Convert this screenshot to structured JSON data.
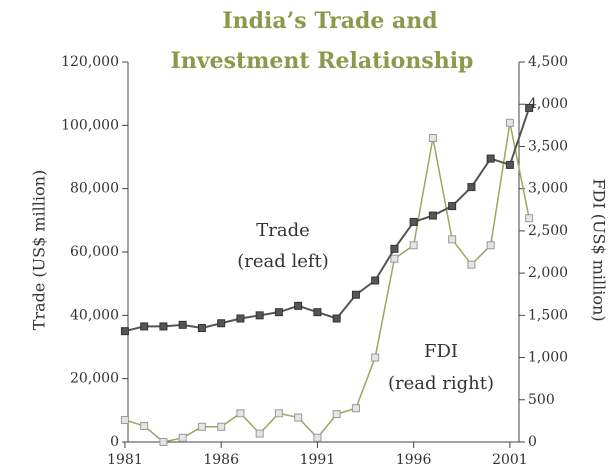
{
  "chart_data": {
    "type": "line",
    "title": [
      "India’s Trade and",
      "Investment Relationship"
    ],
    "y_label": "Trade (US$ million)",
    "y2_label": "FDI (US$ million)",
    "annotations": [
      [
        "Trade",
        "(read left)"
      ],
      [
        "FDI",
        "(read right)"
      ]
    ],
    "x": [
      1981,
      1982,
      1983,
      1984,
      1985,
      1986,
      1987,
      1988,
      1989,
      1990,
      1991,
      1992,
      1993,
      1994,
      1995,
      1996,
      1997,
      1998,
      1999,
      2000,
      2001,
      2002
    ],
    "xlim": [
      1980.9,
      2002.2
    ],
    "xticks": [
      1981,
      1986,
      1991,
      1996,
      2001
    ],
    "ylim": [
      0,
      120000
    ],
    "yticks": [
      0,
      {
        "value": 20000,
        "label": "20,000"
      },
      {
        "value": 40000,
        "label": "40,000"
      },
      {
        "value": 60000,
        "label": "60,000"
      },
      {
        "value": 80000,
        "label": "80,000"
      },
      {
        "value": 100000,
        "label": "100,000"
      },
      {
        "value": 120000,
        "label": "120,000"
      }
    ],
    "y2lim": [
      0,
      4500
    ],
    "y2ticks": [
      0,
      500,
      {
        "value": 1000,
        "label": "1,000"
      },
      {
        "value": 1500,
        "label": "1,500"
      },
      {
        "value": 2000,
        "label": "2,000"
      },
      {
        "value": 2500,
        "label": "2,500"
      },
      {
        "value": 3000,
        "label": "3,000"
      },
      {
        "value": 3500,
        "label": "3,500"
      },
      {
        "value": 4000,
        "label": "4,000"
      },
      {
        "value": 4500,
        "label": "4,500"
      }
    ],
    "series": [
      {
        "name": "Trade",
        "color": "#555555",
        "axis": "y",
        "values": [
          35000,
          36500,
          36500,
          37000,
          36000,
          37500,
          39000,
          40000,
          41000,
          43000,
          41000,
          39000,
          46500,
          51000,
          61000,
          69500,
          71500,
          74500,
          80500,
          89500,
          87500,
          105500
        ]
      },
      {
        "name": "FDI",
        "color": "#9aa85a",
        "axis": "y2",
        "values": [
          260,
          190,
          0,
          50,
          180,
          180,
          340,
          100,
          340,
          290,
          50,
          330,
          400,
          1000,
          2170,
          2330,
          3600,
          2400,
          2100,
          2330,
          3780,
          2650
        ]
      }
    ]
  }
}
